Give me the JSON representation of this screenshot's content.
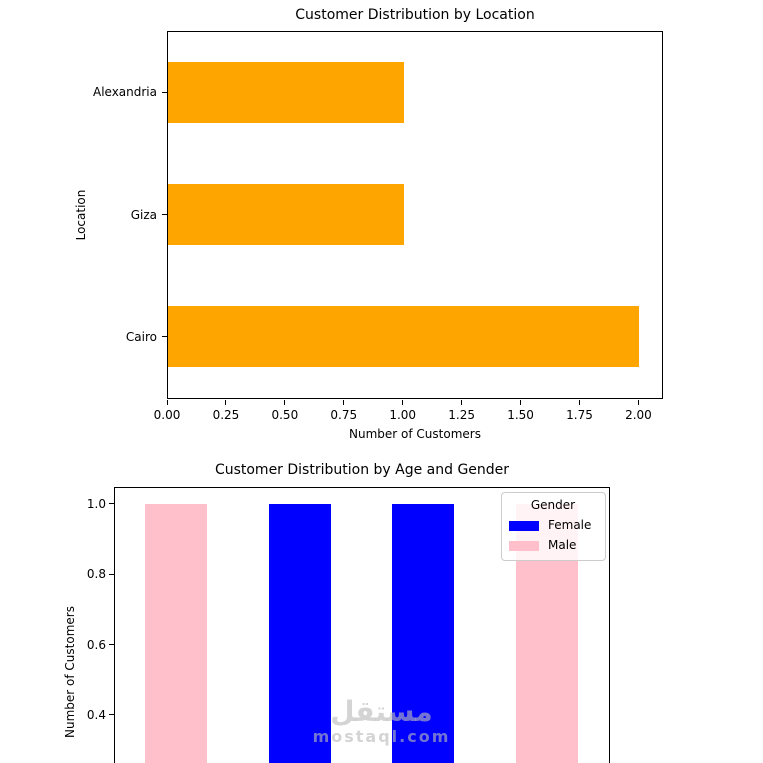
{
  "figure": {
    "background": "#ffffff"
  },
  "watermark": {
    "arabic": "مستقل",
    "latin": "mostaql.com",
    "color": "#b9b9b9"
  },
  "chart_data": [
    {
      "type": "bar",
      "orientation": "horizontal",
      "title": "Customer Distribution by Location",
      "xlabel": "Number of Customers",
      "ylabel": "Location",
      "categories": [
        "Alexandria",
        "Giza",
        "Cairo"
      ],
      "values": [
        1,
        1,
        2
      ],
      "bar_color": "#FFA500",
      "xlim": [
        0,
        2.1
      ],
      "xtick_labels": [
        "0.00",
        "0.25",
        "0.50",
        "0.75",
        "1.00",
        "1.25",
        "1.50",
        "1.75",
        "2.00"
      ],
      "rel_bar_width": 0.5,
      "grid": false
    },
    {
      "type": "bar",
      "orientation": "vertical",
      "title": "Customer Distribution by Age and Gender",
      "ylabel": "Number of Customers",
      "bars": [
        {
          "gender": "Male",
          "value": 1.0
        },
        {
          "gender": "Female",
          "value": 1.0
        },
        {
          "gender": "Female",
          "value": 1.0
        },
        {
          "gender": "Male",
          "value": 1.0
        }
      ],
      "colors": {
        "Female": "#0000FF",
        "Male": "#FFC0CB"
      },
      "legend": {
        "title": "Gender",
        "location": "upper right",
        "entries": [
          {
            "label": "Female",
            "color": "#0000FF"
          },
          {
            "label": "Male",
            "color": "#FFC0CB"
          }
        ]
      },
      "ytick_values": [
        1.0,
        0.8,
        0.6,
        0.4
      ],
      "ylim_visible": [
        0.263,
        1.048
      ],
      "rel_bar_width": 0.5,
      "grid": false,
      "xaxis_cut_off": true
    }
  ]
}
